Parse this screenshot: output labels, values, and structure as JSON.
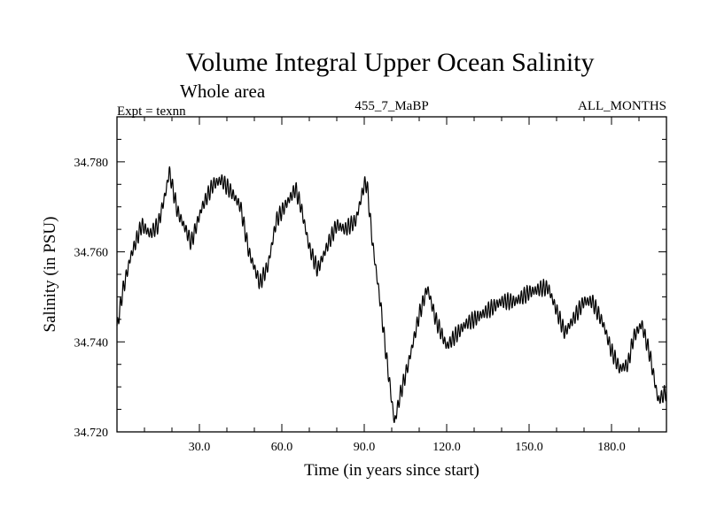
{
  "chart_data": {
    "type": "line",
    "title": "Volume Integral Upper Ocean Salinity",
    "subtitle": "Whole area",
    "annotations": {
      "left": "Expt = texnn",
      "center": "455_7_MaBP",
      "right": "ALL_MONTHS"
    },
    "xlabel": "Time (in years since start)",
    "ylabel": "Salinity (in PSU)",
    "xlim": [
      0,
      200
    ],
    "ylim": [
      34.72,
      34.79
    ],
    "xticks": [
      30,
      60,
      90,
      120,
      150,
      180
    ],
    "xtick_labels": [
      "30.0",
      "60.0",
      "90.0",
      "120.0",
      "150.0",
      "180.0"
    ],
    "yticks": [
      34.72,
      34.74,
      34.76,
      34.78
    ],
    "ytick_labels": [
      "34.720",
      "34.740",
      "34.760",
      "34.780"
    ],
    "noise_amplitude": 0.0016,
    "series": [
      {
        "name": "salinity",
        "color": "#000000",
        "x": [
          0,
          2,
          5,
          9,
          12,
          15,
          18,
          19,
          22,
          25,
          27,
          31,
          35,
          38,
          42,
          45,
          48,
          52,
          55,
          58,
          62,
          65,
          67,
          70,
          73,
          75,
          77,
          80,
          83,
          87,
          90,
          91,
          93,
          96,
          98,
          100,
          101,
          103,
          106,
          110,
          113,
          116,
          120,
          124,
          127,
          130,
          135,
          140,
          145,
          150,
          155,
          157,
          160,
          163,
          166,
          170,
          173,
          177,
          180,
          183,
          186,
          188,
          191,
          194,
          197,
          200
        ],
        "y": [
          34.743,
          34.751,
          34.759,
          34.766,
          34.764,
          34.766,
          34.774,
          34.778,
          34.769,
          34.765,
          34.762,
          34.77,
          34.775,
          34.776,
          34.773,
          34.77,
          34.76,
          34.753,
          34.757,
          34.767,
          34.771,
          34.774,
          34.77,
          34.761,
          34.756,
          34.759,
          34.762,
          34.766,
          34.765,
          34.767,
          34.775,
          34.775,
          34.762,
          34.748,
          34.737,
          34.727,
          34.722,
          34.728,
          34.735,
          34.746,
          34.752,
          34.745,
          34.739,
          34.742,
          34.744,
          34.745,
          34.747,
          34.749,
          34.749,
          34.751,
          34.752,
          34.752,
          34.747,
          34.742,
          34.745,
          34.749,
          34.749,
          34.744,
          34.738,
          34.734,
          34.735,
          34.741,
          34.744,
          34.737,
          34.727,
          34.729
        ]
      }
    ]
  }
}
